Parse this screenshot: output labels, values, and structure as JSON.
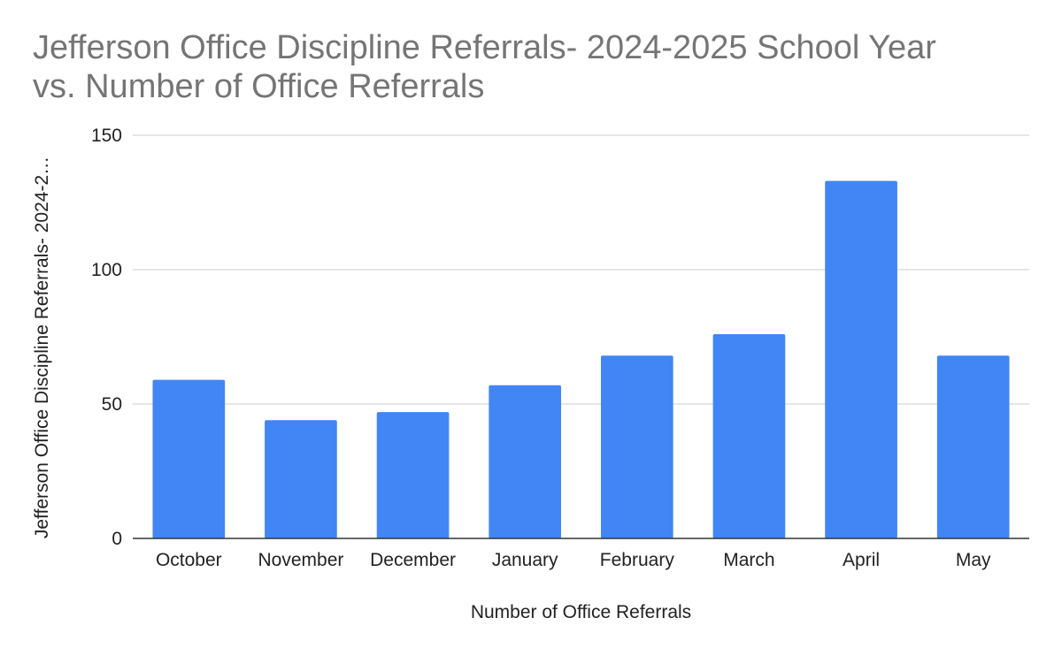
{
  "chart_data": {
    "type": "bar",
    "title": "Jefferson Office Discipline Referrals- 2024-2025 School Year\nvs. Number of Office Referrals",
    "xlabel": "Number of Office Referrals",
    "ylabel": "Jefferson Office Discipline Referrals- 2024-2…",
    "categories": [
      "October",
      "November",
      "December",
      "January",
      "February",
      "March",
      "April",
      "May"
    ],
    "values": [
      59,
      44,
      47,
      57,
      68,
      76,
      133,
      68
    ],
    "ylim": [
      0,
      150
    ],
    "yticks": [
      "0",
      "50",
      "100",
      "150"
    ],
    "ytick_values": [
      0,
      50,
      100,
      150
    ],
    "grid": true,
    "legend": "none",
    "colors": {
      "bar": "#4285f4",
      "title": "#757575",
      "grid": "#cccccc"
    }
  }
}
